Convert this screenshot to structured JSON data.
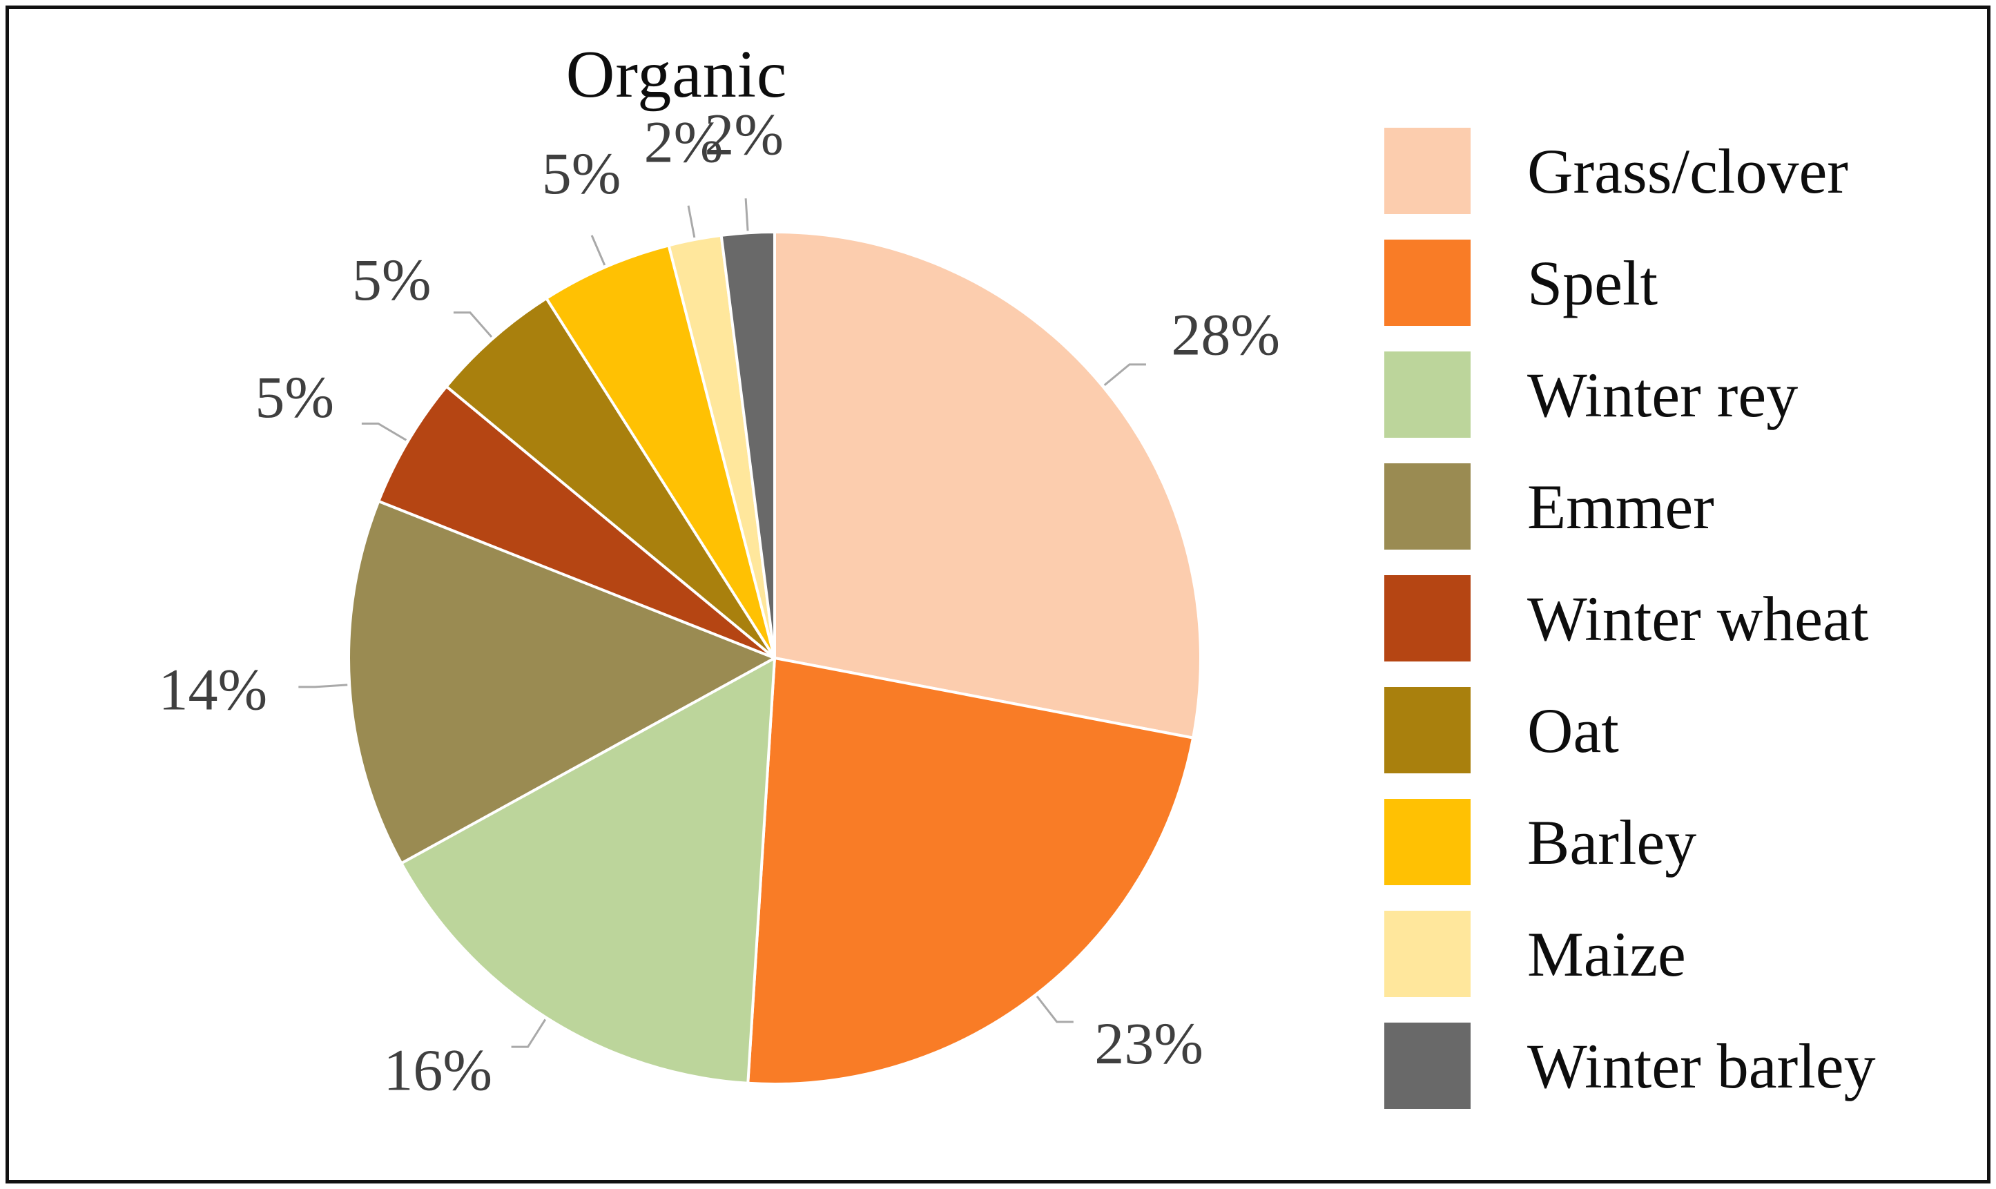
{
  "chart_data": {
    "type": "pie",
    "title": "Organic",
    "value_suffix": "%",
    "start_angle_deg": 0,
    "direction": "clockwise",
    "legend_position": "right",
    "label_color": "#3f3f3f",
    "leader_line_color": "#a9a9a9",
    "slice_separator_color": "#ffffff",
    "slices": [
      {
        "label": "Grass/clover",
        "value": 28,
        "color": "#FCCDAE"
      },
      {
        "label": "Spelt",
        "value": 23,
        "color": "#F97C26"
      },
      {
        "label": "Winter rey",
        "value": 16,
        "color": "#BCD59B"
      },
      {
        "label": "Emmer",
        "value": 14,
        "color": "#9A8B52"
      },
      {
        "label": "Winter wheat",
        "value": 5,
        "color": "#B54513"
      },
      {
        "label": "Oat",
        "value": 5,
        "color": "#A9800D"
      },
      {
        "label": "Barley",
        "value": 5,
        "color": "#FFC103"
      },
      {
        "label": "Maize",
        "value": 2,
        "color": "#FFE79C"
      },
      {
        "label": "Winter barley",
        "value": 2,
        "color": "#696969"
      }
    ]
  }
}
